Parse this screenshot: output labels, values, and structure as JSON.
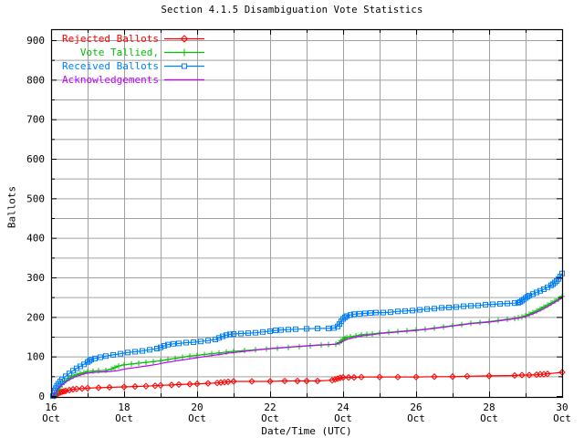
{
  "chart_data": {
    "type": "line",
    "title": "Section 4.1.5 Disambiguation Vote Statistics",
    "xlabel": "Date/Time (UTC)",
    "ylabel": "Ballots",
    "legend_position": "top-left",
    "grid": true,
    "colors": {
      "background": "#ffffff",
      "grid": "#a0a0a0",
      "border": "#000000",
      "text": "#000000"
    },
    "x_axis": {
      "month_label": "Oct",
      "major_tick_days": [
        16,
        18,
        20,
        22,
        24,
        26,
        28,
        30
      ],
      "minor_tick_days": [
        17,
        19,
        21,
        23,
        25,
        27,
        29
      ],
      "range_days": [
        16,
        30
      ]
    },
    "y_axis": {
      "major_ticks": [
        0,
        100,
        200,
        300,
        400,
        500,
        600,
        700,
        800,
        900
      ],
      "minor_step": 50,
      "range": [
        0,
        927
      ]
    },
    "series": [
      {
        "name": "rejected-ballots",
        "label": "Rejected Ballots",
        "color": "#ff0000",
        "marker": "diamond",
        "points": [
          [
            16.1,
            0
          ],
          [
            16.13,
            2
          ],
          [
            16.17,
            5
          ],
          [
            16.2,
            7
          ],
          [
            16.25,
            9
          ],
          [
            16.3,
            11
          ],
          [
            16.35,
            12
          ],
          [
            16.4,
            13
          ],
          [
            16.5,
            15
          ],
          [
            16.6,
            17
          ],
          [
            16.7,
            18
          ],
          [
            16.85,
            19
          ],
          [
            17.0,
            20
          ],
          [
            17.3,
            21
          ],
          [
            17.6,
            22
          ],
          [
            18.0,
            23
          ],
          [
            18.3,
            24
          ],
          [
            18.6,
            25
          ],
          [
            18.85,
            26
          ],
          [
            19.0,
            27
          ],
          [
            19.3,
            28
          ],
          [
            19.5,
            29
          ],
          [
            19.8,
            30
          ],
          [
            20.0,
            31
          ],
          [
            20.3,
            32
          ],
          [
            20.55,
            33
          ],
          [
            20.65,
            34
          ],
          [
            20.75,
            35
          ],
          [
            20.85,
            36
          ],
          [
            21.0,
            37
          ],
          [
            21.5,
            37
          ],
          [
            22.0,
            37
          ],
          [
            22.4,
            38
          ],
          [
            22.75,
            38
          ],
          [
            23.0,
            38
          ],
          [
            23.3,
            38
          ],
          [
            23.7,
            40
          ],
          [
            23.78,
            42
          ],
          [
            23.85,
            44
          ],
          [
            23.92,
            46
          ],
          [
            24.0,
            47
          ],
          [
            24.15,
            47
          ],
          [
            24.3,
            47
          ],
          [
            24.5,
            48
          ],
          [
            25.0,
            48
          ],
          [
            25.5,
            48
          ],
          [
            26.0,
            48
          ],
          [
            26.5,
            49
          ],
          [
            27.0,
            49
          ],
          [
            27.4,
            50
          ],
          [
            28.0,
            51
          ],
          [
            28.7,
            52
          ],
          [
            28.9,
            53
          ],
          [
            29.1,
            53
          ],
          [
            29.3,
            54
          ],
          [
            29.4,
            55
          ],
          [
            29.5,
            55
          ],
          [
            29.6,
            56
          ],
          [
            30.0,
            60
          ]
        ]
      },
      {
        "name": "vote-tallied",
        "label": "Vote Tallied,",
        "color": "#00c000",
        "marker": "plus",
        "points": [
          [
            16.1,
            0
          ],
          [
            16.15,
            8
          ],
          [
            16.2,
            16
          ],
          [
            16.25,
            23
          ],
          [
            16.3,
            29
          ],
          [
            16.4,
            38
          ],
          [
            16.5,
            45
          ],
          [
            16.6,
            50
          ],
          [
            16.7,
            54
          ],
          [
            16.8,
            57
          ],
          [
            16.9,
            59
          ],
          [
            17.0,
            62
          ],
          [
            17.15,
            63
          ],
          [
            17.3,
            64
          ],
          [
            17.5,
            65
          ],
          [
            17.65,
            68
          ],
          [
            17.75,
            72
          ],
          [
            17.85,
            76
          ],
          [
            18.0,
            79
          ],
          [
            18.2,
            81
          ],
          [
            18.4,
            83
          ],
          [
            18.6,
            85
          ],
          [
            18.8,
            87
          ],
          [
            19.0,
            89
          ],
          [
            19.2,
            92
          ],
          [
            19.4,
            95
          ],
          [
            19.6,
            98
          ],
          [
            19.8,
            101
          ],
          [
            20.0,
            103
          ],
          [
            20.2,
            105
          ],
          [
            20.4,
            107
          ],
          [
            20.6,
            109
          ],
          [
            20.8,
            111
          ],
          [
            21.0,
            113
          ],
          [
            21.3,
            115
          ],
          [
            21.6,
            117
          ],
          [
            21.9,
            119
          ],
          [
            22.2,
            121
          ],
          [
            22.5,
            123
          ],
          [
            22.8,
            125
          ],
          [
            23.1,
            127
          ],
          [
            23.4,
            129
          ],
          [
            23.6,
            130
          ],
          [
            23.8,
            131
          ],
          [
            23.9,
            135
          ],
          [
            23.95,
            139
          ],
          [
            24.0,
            143
          ],
          [
            24.05,
            146
          ],
          [
            24.1,
            148
          ],
          [
            24.2,
            150
          ],
          [
            24.35,
            152
          ],
          [
            24.5,
            155
          ],
          [
            24.65,
            156
          ],
          [
            24.8,
            157
          ],
          [
            25.0,
            159
          ],
          [
            25.25,
            161
          ],
          [
            25.5,
            163
          ],
          [
            25.75,
            165
          ],
          [
            26.0,
            167
          ],
          [
            26.25,
            169
          ],
          [
            26.5,
            172
          ],
          [
            26.75,
            175
          ],
          [
            27.0,
            178
          ],
          [
            27.25,
            181
          ],
          [
            27.5,
            184
          ],
          [
            27.75,
            186
          ],
          [
            28.0,
            188
          ],
          [
            28.25,
            191
          ],
          [
            28.5,
            194
          ],
          [
            28.7,
            196
          ],
          [
            28.8,
            198
          ],
          [
            28.9,
            200
          ],
          [
            29.0,
            203
          ],
          [
            29.1,
            207
          ],
          [
            29.2,
            211
          ],
          [
            29.3,
            215
          ],
          [
            29.4,
            220
          ],
          [
            29.5,
            225
          ],
          [
            29.6,
            230
          ],
          [
            29.7,
            235
          ],
          [
            29.8,
            240
          ],
          [
            29.9,
            245
          ],
          [
            30.0,
            252
          ]
        ]
      },
      {
        "name": "received-ballots",
        "label": "Received Ballots",
        "color": "#0080ff",
        "marker": "square",
        "points": [
          [
            16.05,
            0
          ],
          [
            16.08,
            8
          ],
          [
            16.1,
            14
          ],
          [
            16.13,
            20
          ],
          [
            16.16,
            26
          ],
          [
            16.2,
            31
          ],
          [
            16.25,
            37
          ],
          [
            16.3,
            42
          ],
          [
            16.4,
            50
          ],
          [
            16.5,
            57
          ],
          [
            16.6,
            64
          ],
          [
            16.7,
            70
          ],
          [
            16.8,
            75
          ],
          [
            16.9,
            80
          ],
          [
            17.0,
            86
          ],
          [
            17.05,
            89
          ],
          [
            17.1,
            92
          ],
          [
            17.2,
            95
          ],
          [
            17.35,
            98
          ],
          [
            17.5,
            101
          ],
          [
            17.7,
            104
          ],
          [
            17.9,
            107
          ],
          [
            18.1,
            110
          ],
          [
            18.3,
            112
          ],
          [
            18.5,
            114
          ],
          [
            18.7,
            117
          ],
          [
            18.9,
            120
          ],
          [
            19.0,
            123
          ],
          [
            19.1,
            127
          ],
          [
            19.2,
            130
          ],
          [
            19.35,
            132
          ],
          [
            19.5,
            133
          ],
          [
            19.7,
            135
          ],
          [
            19.9,
            136
          ],
          [
            20.1,
            138
          ],
          [
            20.3,
            140
          ],
          [
            20.5,
            143
          ],
          [
            20.6,
            147
          ],
          [
            20.7,
            151
          ],
          [
            20.8,
            154
          ],
          [
            20.9,
            156
          ],
          [
            21.0,
            157
          ],
          [
            21.2,
            158
          ],
          [
            21.4,
            159
          ],
          [
            21.6,
            160
          ],
          [
            21.8,
            162
          ],
          [
            22.0,
            164
          ],
          [
            22.15,
            166
          ],
          [
            22.3,
            167
          ],
          [
            22.5,
            168
          ],
          [
            22.7,
            169
          ],
          [
            23.0,
            170
          ],
          [
            23.3,
            171
          ],
          [
            23.6,
            171
          ],
          [
            23.75,
            172
          ],
          [
            23.85,
            176
          ],
          [
            23.9,
            182
          ],
          [
            23.95,
            189
          ],
          [
            24.0,
            195
          ],
          [
            24.05,
            199
          ],
          [
            24.1,
            202
          ],
          [
            24.2,
            205
          ],
          [
            24.3,
            207
          ],
          [
            24.45,
            208
          ],
          [
            24.6,
            209
          ],
          [
            24.75,
            210
          ],
          [
            24.9,
            211
          ],
          [
            25.1,
            211
          ],
          [
            25.3,
            212
          ],
          [
            25.5,
            214
          ],
          [
            25.7,
            215
          ],
          [
            25.9,
            216
          ],
          [
            26.1,
            218
          ],
          [
            26.3,
            220
          ],
          [
            26.5,
            221
          ],
          [
            26.7,
            223
          ],
          [
            26.9,
            224
          ],
          [
            27.1,
            225
          ],
          [
            27.3,
            227
          ],
          [
            27.5,
            228
          ],
          [
            27.7,
            229
          ],
          [
            27.9,
            231
          ],
          [
            28.1,
            232
          ],
          [
            28.3,
            233
          ],
          [
            28.5,
            234
          ],
          [
            28.7,
            235
          ],
          [
            28.8,
            236
          ],
          [
            28.85,
            238
          ],
          [
            28.9,
            241
          ],
          [
            28.95,
            244
          ],
          [
            29.0,
            248
          ],
          [
            29.05,
            251
          ],
          [
            29.1,
            254
          ],
          [
            29.2,
            258
          ],
          [
            29.3,
            262
          ],
          [
            29.4,
            266
          ],
          [
            29.5,
            270
          ],
          [
            29.6,
            275
          ],
          [
            29.7,
            280
          ],
          [
            29.75,
            283
          ],
          [
            29.8,
            287
          ],
          [
            29.85,
            291
          ],
          [
            29.9,
            296
          ],
          [
            29.95,
            302
          ],
          [
            30.0,
            310
          ]
        ]
      },
      {
        "name": "acknowledgements",
        "label": "Acknowledgements",
        "color": "#c000ff",
        "marker": "none",
        "points": [
          [
            16.05,
            0
          ],
          [
            16.1,
            6
          ],
          [
            16.15,
            13
          ],
          [
            16.2,
            20
          ],
          [
            16.3,
            28
          ],
          [
            16.4,
            35
          ],
          [
            16.5,
            41
          ],
          [
            16.6,
            46
          ],
          [
            16.7,
            50
          ],
          [
            16.8,
            53
          ],
          [
            16.9,
            56
          ],
          [
            17.0,
            58
          ],
          [
            17.2,
            60
          ],
          [
            17.4,
            61
          ],
          [
            17.6,
            62
          ],
          [
            17.8,
            64
          ],
          [
            18.0,
            68
          ],
          [
            18.3,
            72
          ],
          [
            18.6,
            76
          ],
          [
            18.9,
            80
          ],
          [
            19.1,
            84
          ],
          [
            19.3,
            87
          ],
          [
            19.5,
            90
          ],
          [
            19.8,
            94
          ],
          [
            20.0,
            97
          ],
          [
            20.3,
            101
          ],
          [
            20.6,
            105
          ],
          [
            20.9,
            109
          ],
          [
            21.2,
            112
          ],
          [
            21.5,
            115
          ],
          [
            21.8,
            118
          ],
          [
            22.1,
            121
          ],
          [
            22.4,
            123
          ],
          [
            22.7,
            125
          ],
          [
            23.0,
            127
          ],
          [
            23.3,
            129
          ],
          [
            23.6,
            130
          ],
          [
            23.8,
            131
          ],
          [
            23.9,
            134
          ],
          [
            24.0,
            139
          ],
          [
            24.1,
            143
          ],
          [
            24.2,
            146
          ],
          [
            24.3,
            148
          ],
          [
            24.5,
            152
          ],
          [
            24.8,
            155
          ],
          [
            25.0,
            158
          ],
          [
            25.5,
            162
          ],
          [
            26.0,
            166
          ],
          [
            26.5,
            171
          ],
          [
            27.0,
            177
          ],
          [
            27.5,
            183
          ],
          [
            28.0,
            187
          ],
          [
            28.5,
            193
          ],
          [
            28.8,
            197
          ],
          [
            29.0,
            201
          ],
          [
            29.2,
            208
          ],
          [
            29.4,
            216
          ],
          [
            29.6,
            226
          ],
          [
            29.8,
            237
          ],
          [
            30.0,
            248
          ]
        ]
      }
    ]
  }
}
